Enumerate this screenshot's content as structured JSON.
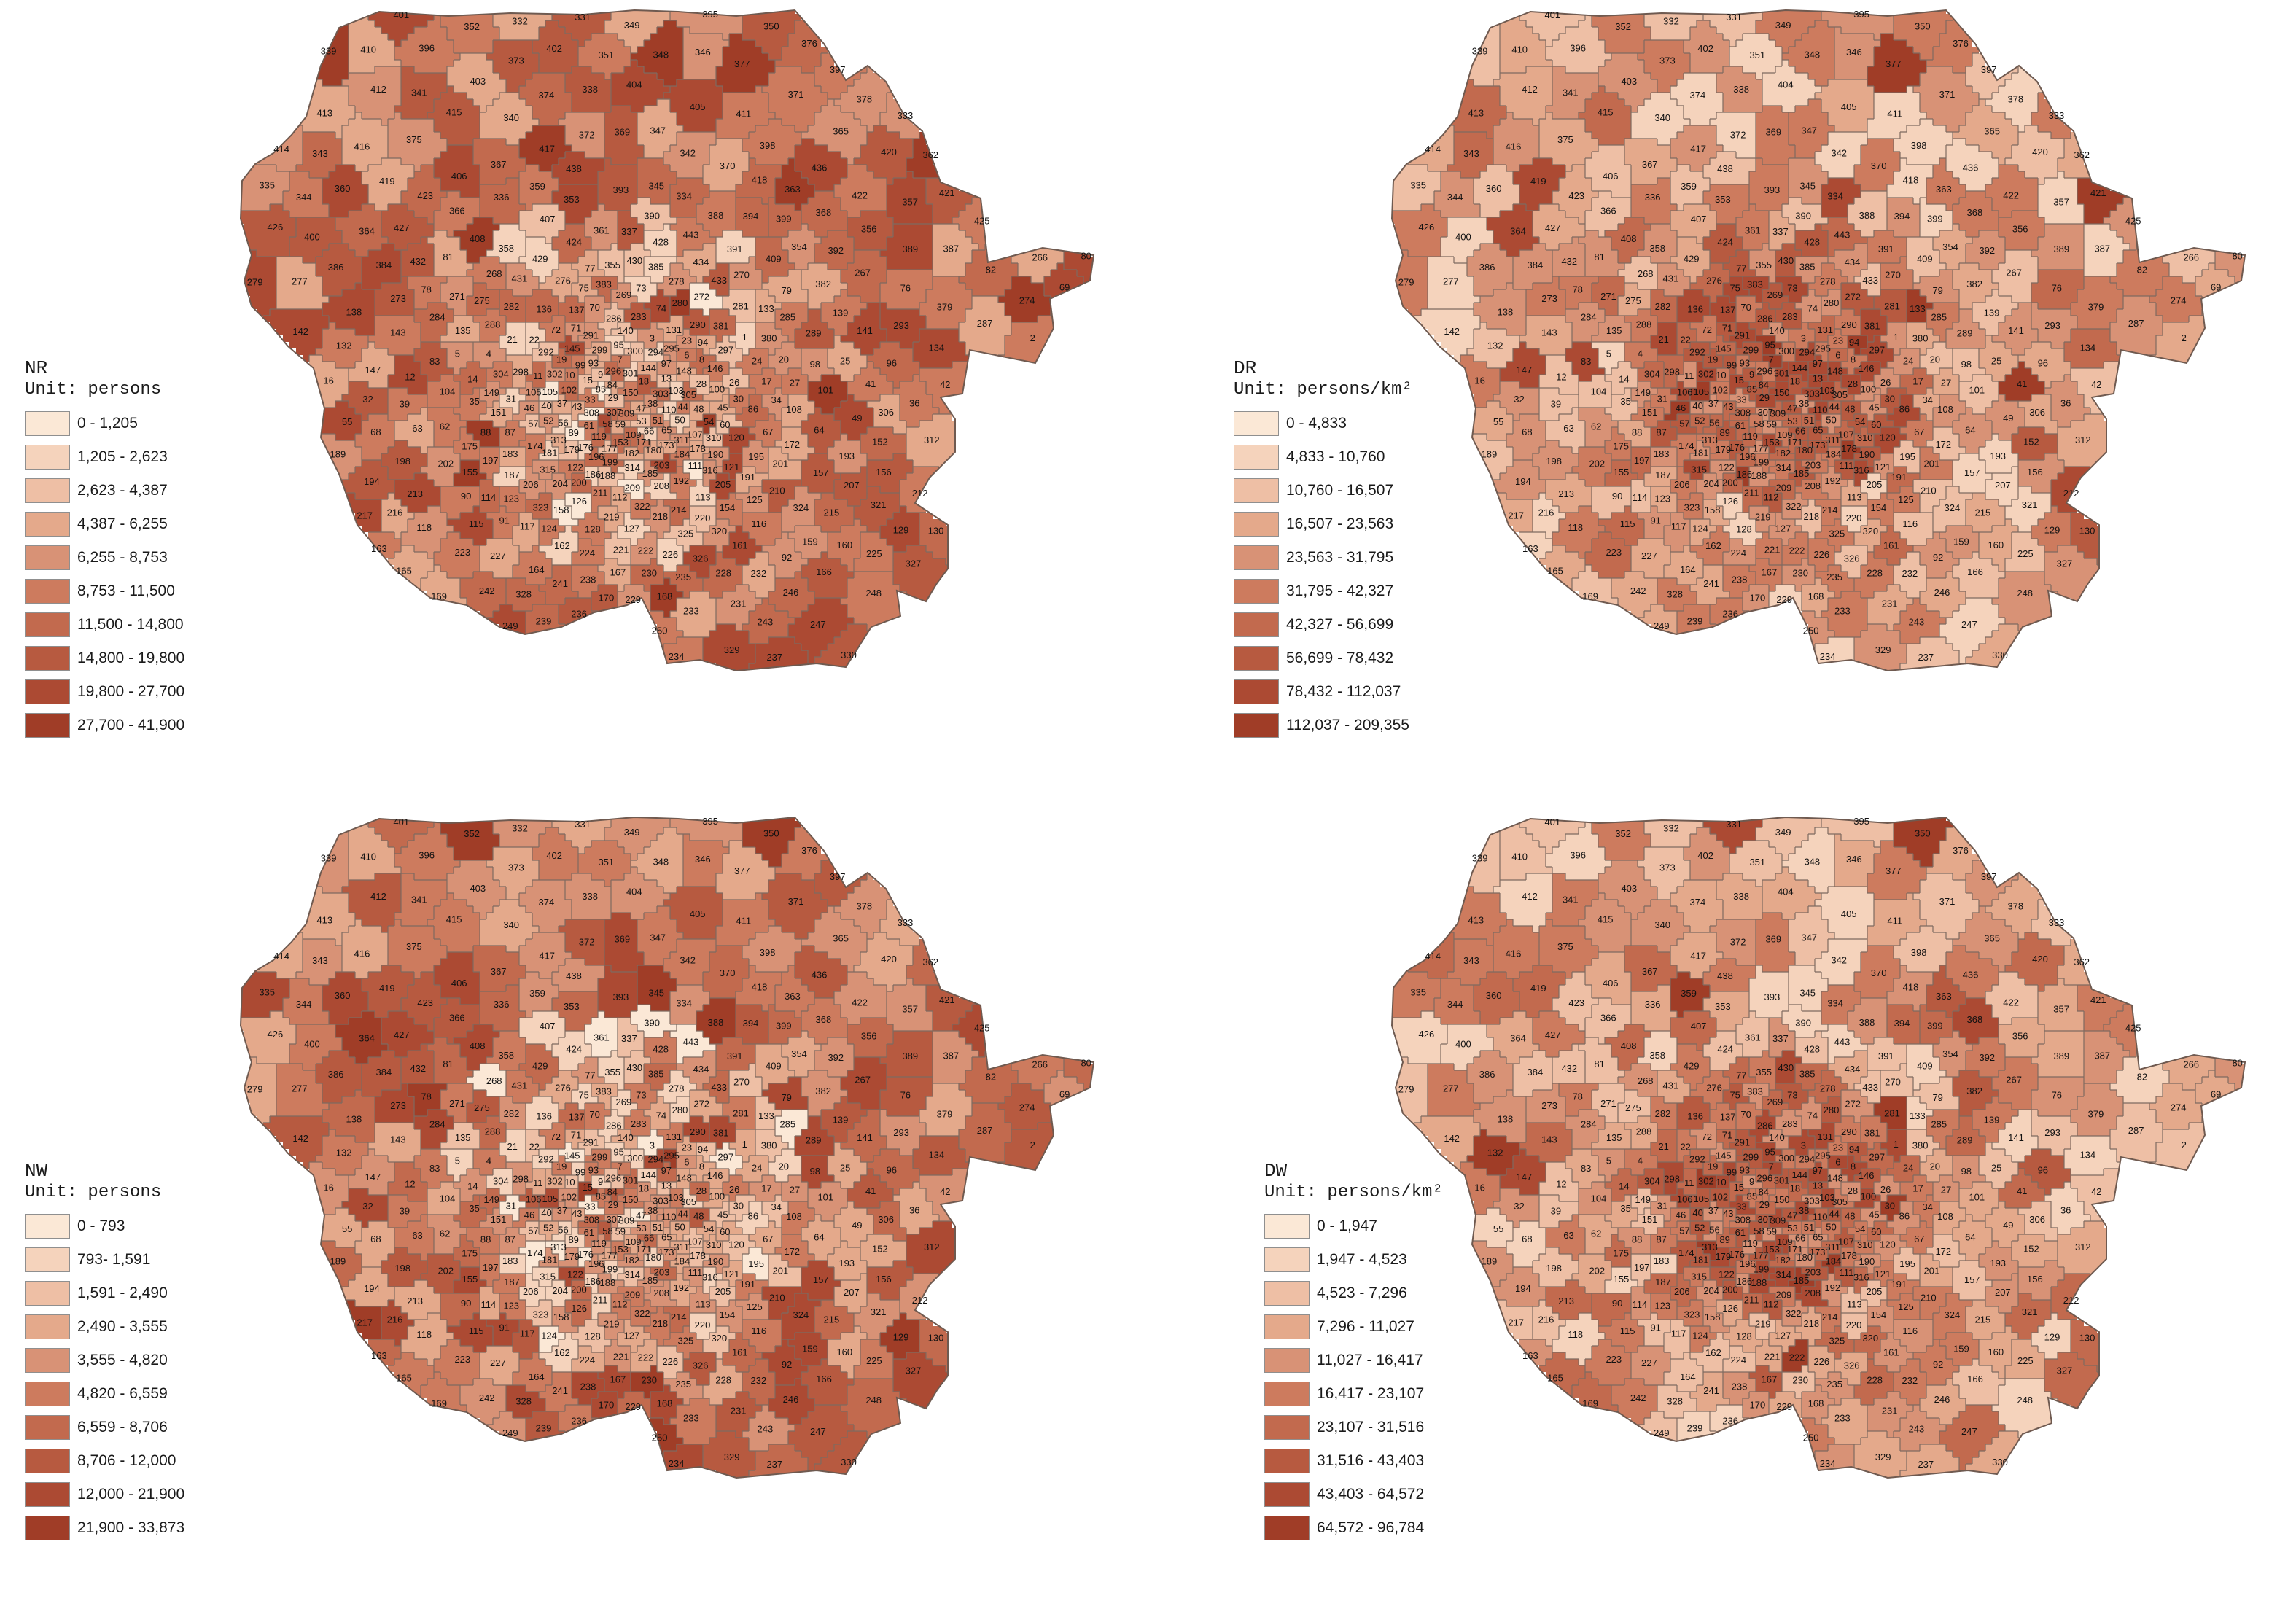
{
  "palette": [
    "#fbe8d6",
    "#f5d3bc",
    "#eebfa5",
    "#e4a98b",
    "#d89276",
    "#cd7b5e",
    "#c26a4e",
    "#b75a40",
    "#ac4a33",
    "#a03d27"
  ],
  "panels": [
    {
      "id": "NR",
      "legend": {
        "title": "NR",
        "unit": "Unit: persons",
        "classes": [
          "0 - 1,205",
          "1,205 - 2,623",
          "2,623 - 4,387",
          "4,387 - 6,255",
          "6,255 - 8,753",
          "8,753 - 11,500",
          "11,500 - 14,800",
          "14,800 - 19,800",
          "19,800 - 27,700",
          "27,700 - 41,900"
        ]
      },
      "seed": 11
    },
    {
      "id": "DR",
      "legend": {
        "title": "DR",
        "unit": "Unit: persons/km²",
        "classes": [
          "0 - 4,833",
          "4,833 - 10,760",
          "10,760 - 16,507",
          "16,507 - 23,563",
          "23,563 - 31,795",
          "31,795 - 42,327",
          "42,327 - 56,699",
          "56,699 - 78,432",
          "78,432 - 112,037",
          "112,037 - 209,355"
        ]
      },
      "seed": 23
    },
    {
      "id": "NW",
      "legend": {
        "title": "NW",
        "unit": "Unit: persons",
        "classes": [
          "0 - 793",
          "793- 1,591",
          "1,591 - 2,490",
          "2,490 - 3,555",
          "3,555 - 4,820",
          "4,820 - 6,559",
          "6,559 - 8,706",
          "8,706 - 12,000",
          "12,000 - 21,900",
          "21,900 - 33,873"
        ]
      },
      "seed": 37
    },
    {
      "id": "DW",
      "legend": {
        "title": "DW",
        "unit": "Unit: persons/km²",
        "classes": [
          "0 - 1,947",
          "1,947 - 4,523",
          "4,523 - 7,296",
          "7,296 - 11,027",
          "11,027 - 16,417",
          "16,417 - 23,107",
          "23,107 - 31,516",
          "31,516 - 43,403",
          "43,403 - 64,572",
          "64,572 - 96,784"
        ]
      },
      "seed": 53
    }
  ],
  "districts": [
    {
      "id": "395"
    },
    {
      "id": "401"
    },
    {
      "id": "331"
    },
    {
      "id": "332"
    },
    {
      "id": "349"
    },
    {
      "id": "350"
    },
    {
      "id": "352"
    },
    {
      "id": "376"
    },
    {
      "id": "396"
    },
    {
      "id": "402"
    },
    {
      "id": "410"
    },
    {
      "id": "339"
    },
    {
      "id": "346"
    },
    {
      "id": "348"
    },
    {
      "id": "351"
    },
    {
      "id": "373"
    },
    {
      "id": "377"
    },
    {
      "id": "397"
    },
    {
      "id": "403"
    },
    {
      "id": "404"
    },
    {
      "id": "412"
    },
    {
      "id": "338"
    },
    {
      "id": "341"
    },
    {
      "id": "371"
    },
    {
      "id": "374"
    },
    {
      "id": "378"
    },
    {
      "id": "405"
    },
    {
      "id": "415"
    },
    {
      "id": "413"
    },
    {
      "id": "411"
    },
    {
      "id": "333"
    },
    {
      "id": "340"
    },
    {
      "id": "347"
    },
    {
      "id": "365"
    },
    {
      "id": "369"
    },
    {
      "id": "372"
    },
    {
      "id": "375"
    },
    {
      "id": "398"
    },
    {
      "id": "416"
    },
    {
      "id": "417"
    },
    {
      "id": "414"
    },
    {
      "id": "420"
    },
    {
      "id": "342"
    },
    {
      "id": "343"
    },
    {
      "id": "362"
    },
    {
      "id": "367"
    },
    {
      "id": "370"
    },
    {
      "id": "436"
    },
    {
      "id": "438"
    },
    {
      "id": "406"
    },
    {
      "id": "418"
    },
    {
      "id": "419"
    },
    {
      "id": "335"
    },
    {
      "id": "345"
    },
    {
      "id": "359"
    },
    {
      "id": "360"
    },
    {
      "id": "363"
    },
    {
      "id": "393"
    },
    {
      "id": "421"
    },
    {
      "id": "422"
    },
    {
      "id": "423"
    },
    {
      "id": "334"
    },
    {
      "id": "336"
    },
    {
      "id": "344"
    },
    {
      "id": "353"
    },
    {
      "id": "357"
    },
    {
      "id": "366"
    },
    {
      "id": "368"
    },
    {
      "id": "388"
    },
    {
      "id": "390"
    },
    {
      "id": "394"
    },
    {
      "id": "399"
    },
    {
      "id": "407"
    },
    {
      "id": "425"
    },
    {
      "id": "426"
    },
    {
      "id": "427"
    },
    {
      "id": "356"
    },
    {
      "id": "361"
    },
    {
      "id": "364"
    },
    {
      "id": "337"
    },
    {
      "id": "443"
    },
    {
      "id": "400"
    },
    {
      "id": "408"
    },
    {
      "id": "424"
    },
    {
      "id": "428"
    },
    {
      "id": "354"
    },
    {
      "id": "358"
    },
    {
      "id": "387"
    },
    {
      "id": "389"
    },
    {
      "id": "391"
    },
    {
      "id": "392"
    },
    {
      "id": "80"
    },
    {
      "id": "81"
    },
    {
      "id": "266"
    },
    {
      "id": "409"
    },
    {
      "id": "429"
    },
    {
      "id": "430"
    },
    {
      "id": "432"
    },
    {
      "id": "434"
    },
    {
      "id": "355"
    },
    {
      "id": "384"
    },
    {
      "id": "385"
    },
    {
      "id": "386"
    },
    {
      "id": "77"
    },
    {
      "id": "82"
    },
    {
      "id": "267"
    },
    {
      "id": "268"
    },
    {
      "id": "270"
    },
    {
      "id": "431"
    },
    {
      "id": "433"
    },
    {
      "id": "276"
    },
    {
      "id": "277"
    },
    {
      "id": "278"
    },
    {
      "id": "279"
    },
    {
      "id": "382"
    },
    {
      "id": "383"
    },
    {
      "id": "69"
    },
    {
      "id": "73"
    },
    {
      "id": "75"
    },
    {
      "id": "76"
    },
    {
      "id": "78"
    },
    {
      "id": "79"
    },
    {
      "id": "269"
    },
    {
      "id": "271"
    },
    {
      "id": "272"
    },
    {
      "id": "273"
    },
    {
      "id": "274"
    },
    {
      "id": "275"
    },
    {
      "id": "280"
    },
    {
      "id": "281"
    },
    {
      "id": "282"
    },
    {
      "id": "379"
    },
    {
      "id": "70"
    },
    {
      "id": "74"
    },
    {
      "id": "133"
    },
    {
      "id": "136"
    },
    {
      "id": "137"
    },
    {
      "id": "138"
    },
    {
      "id": "139"
    },
    {
      "id": "283"
    },
    {
      "id": "284"
    },
    {
      "id": "285"
    },
    {
      "id": "286"
    },
    {
      "id": "287"
    },
    {
      "id": "288"
    },
    {
      "id": "290"
    },
    {
      "id": "293"
    },
    {
      "id": "381"
    },
    {
      "id": "71"
    },
    {
      "id": "72"
    },
    {
      "id": "131"
    },
    {
      "id": "135"
    },
    {
      "id": "140"
    },
    {
      "id": "141"
    },
    {
      "id": "142"
    },
    {
      "id": "143"
    },
    {
      "id": "289"
    },
    {
      "id": "291"
    },
    {
      "id": "1"
    },
    {
      "id": "2"
    },
    {
      "id": "3"
    },
    {
      "id": "380"
    },
    {
      "id": "21"
    },
    {
      "id": "22"
    },
    {
      "id": "23"
    },
    {
      "id": "94"
    },
    {
      "id": "95"
    },
    {
      "id": "132"
    },
    {
      "id": "134"
    },
    {
      "id": "145"
    },
    {
      "id": "295"
    },
    {
      "id": "297"
    },
    {
      "id": "299"
    },
    {
      "id": "300"
    },
    {
      "id": "292"
    },
    {
      "id": "294"
    },
    {
      "id": "4"
    },
    {
      "id": "5"
    },
    {
      "id": "6"
    },
    {
      "id": "7"
    },
    {
      "id": "8"
    },
    {
      "id": "19"
    },
    {
      "id": "20"
    },
    {
      "id": "24"
    },
    {
      "id": "25"
    },
    {
      "id": "83"
    },
    {
      "id": "93"
    },
    {
      "id": "96"
    },
    {
      "id": "97"
    },
    {
      "id": "98"
    },
    {
      "id": "99"
    },
    {
      "id": "144"
    },
    {
      "id": "146"
    },
    {
      "id": "147"
    },
    {
      "id": "148"
    },
    {
      "id": "296"
    },
    {
      "id": "298"
    },
    {
      "id": "301"
    },
    {
      "id": "302"
    },
    {
      "id": "304"
    },
    {
      "id": "9"
    },
    {
      "id": "10"
    },
    {
      "id": "11"
    },
    {
      "id": "12"
    },
    {
      "id": "13"
    },
    {
      "id": "14"
    },
    {
      "id": "15"
    },
    {
      "id": "16"
    },
    {
      "id": "17"
    },
    {
      "id": "18"
    },
    {
      "id": "26"
    },
    {
      "id": "27"
    },
    {
      "id": "28"
    },
    {
      "id": "41"
    },
    {
      "id": "42"
    },
    {
      "id": "84"
    },
    {
      "id": "85"
    },
    {
      "id": "100"
    },
    {
      "id": "101"
    },
    {
      "id": "102"
    },
    {
      "id": "103"
    },
    {
      "id": "104"
    },
    {
      "id": "105"
    },
    {
      "id": "106"
    },
    {
      "id": "149"
    },
    {
      "id": "150"
    },
    {
      "id": "303"
    },
    {
      "id": "305"
    },
    {
      "id": "29"
    },
    {
      "id": "30"
    },
    {
      "id": "31"
    },
    {
      "id": "32"
    },
    {
      "id": "33"
    },
    {
      "id": "34"
    },
    {
      "id": "35"
    },
    {
      "id": "36"
    },
    {
      "id": "37"
    },
    {
      "id": "38"
    },
    {
      "id": "39"
    },
    {
      "id": "40"
    },
    {
      "id": "43"
    },
    {
      "id": "44"
    },
    {
      "id": "45"
    },
    {
      "id": "46"
    },
    {
      "id": "47"
    },
    {
      "id": "48"
    },
    {
      "id": "86"
    },
    {
      "id": "108"
    },
    {
      "id": "110"
    },
    {
      "id": "151"
    },
    {
      "id": "306"
    },
    {
      "id": "307"
    },
    {
      "id": "308"
    },
    {
      "id": "309"
    },
    {
      "id": "49"
    },
    {
      "id": "50"
    },
    {
      "id": "51"
    },
    {
      "id": "52"
    },
    {
      "id": "53"
    },
    {
      "id": "54"
    },
    {
      "id": "55"
    },
    {
      "id": "56"
    },
    {
      "id": "57"
    },
    {
      "id": "58"
    },
    {
      "id": "59"
    },
    {
      "id": "60"
    },
    {
      "id": "61"
    },
    {
      "id": "62"
    },
    {
      "id": "63"
    },
    {
      "id": "64"
    },
    {
      "id": "65"
    },
    {
      "id": "66"
    },
    {
      "id": "67"
    },
    {
      "id": "68"
    },
    {
      "id": "87"
    },
    {
      "id": "88"
    },
    {
      "id": "89"
    },
    {
      "id": "107"
    },
    {
      "id": "109"
    },
    {
      "id": "119"
    },
    {
      "id": "120"
    },
    {
      "id": "310"
    },
    {
      "id": "311"
    },
    {
      "id": "312"
    },
    {
      "id": "313"
    },
    {
      "id": "152"
    },
    {
      "id": "153"
    },
    {
      "id": "171"
    },
    {
      "id": "172"
    },
    {
      "id": "173"
    },
    {
      "id": "174"
    },
    {
      "id": "175"
    },
    {
      "id": "176"
    },
    {
      "id": "177"
    },
    {
      "id": "178"
    },
    {
      "id": "179"
    },
    {
      "id": "180"
    },
    {
      "id": "181"
    },
    {
      "id": "182"
    },
    {
      "id": "183"
    },
    {
      "id": "184"
    },
    {
      "id": "189"
    },
    {
      "id": "190"
    },
    {
      "id": "193"
    },
    {
      "id": "195"
    },
    {
      "id": "196"
    },
    {
      "id": "197"
    },
    {
      "id": "198"
    },
    {
      "id": "199"
    },
    {
      "id": "201"
    },
    {
      "id": "202"
    },
    {
      "id": "203"
    },
    {
      "id": "111"
    },
    {
      "id": "121"
    },
    {
      "id": "122"
    },
    {
      "id": "314"
    },
    {
      "id": "315"
    },
    {
      "id": "316"
    },
    {
      "id": "155"
    },
    {
      "id": "156"
    },
    {
      "id": "157"
    },
    {
      "id": "185"
    },
    {
      "id": "186"
    },
    {
      "id": "187"
    },
    {
      "id": "188"
    },
    {
      "id": "191"
    },
    {
      "id": "192"
    },
    {
      "id": "194"
    },
    {
      "id": "200"
    },
    {
      "id": "204"
    },
    {
      "id": "205"
    },
    {
      "id": "206"
    },
    {
      "id": "207"
    },
    {
      "id": "208"
    },
    {
      "id": "209"
    },
    {
      "id": "210"
    },
    {
      "id": "211"
    },
    {
      "id": "212"
    },
    {
      "id": "213"
    },
    {
      "id": "90"
    },
    {
      "id": "112"
    },
    {
      "id": "113"
    },
    {
      "id": "114"
    },
    {
      "id": "123"
    },
    {
      "id": "125"
    },
    {
      "id": "126"
    },
    {
      "id": "321"
    },
    {
      "id": "322"
    },
    {
      "id": "323"
    },
    {
      "id": "324"
    },
    {
      "id": "154"
    },
    {
      "id": "158"
    },
    {
      "id": "214"
    },
    {
      "id": "215"
    },
    {
      "id": "216"
    },
    {
      "id": "217"
    },
    {
      "id": "218"
    },
    {
      "id": "219"
    },
    {
      "id": "220"
    },
    {
      "id": "91"
    },
    {
      "id": "115"
    },
    {
      "id": "116"
    },
    {
      "id": "117"
    },
    {
      "id": "118"
    },
    {
      "id": "124"
    },
    {
      "id": "127"
    },
    {
      "id": "128"
    },
    {
      "id": "129"
    },
    {
      "id": "130"
    },
    {
      "id": "320"
    },
    {
      "id": "325"
    },
    {
      "id": "159"
    },
    {
      "id": "160"
    },
    {
      "id": "161"
    },
    {
      "id": "162"
    },
    {
      "id": "163"
    },
    {
      "id": "221"
    },
    {
      "id": "222"
    },
    {
      "id": "223"
    },
    {
      "id": "224"
    },
    {
      "id": "225"
    },
    {
      "id": "226"
    },
    {
      "id": "227"
    },
    {
      "id": "92"
    },
    {
      "id": "326"
    },
    {
      "id": "327"
    },
    {
      "id": "164"
    },
    {
      "id": "165"
    },
    {
      "id": "166"
    },
    {
      "id": "167"
    },
    {
      "id": "228"
    },
    {
      "id": "230"
    },
    {
      "id": "232"
    },
    {
      "id": "235"
    },
    {
      "id": "238"
    },
    {
      "id": "241"
    },
    {
      "id": "242"
    },
    {
      "id": "246"
    },
    {
      "id": "248"
    },
    {
      "id": "328"
    },
    {
      "id": "168"
    },
    {
      "id": "169"
    },
    {
      "id": "170"
    },
    {
      "id": "229"
    },
    {
      "id": "231"
    },
    {
      "id": "233"
    },
    {
      "id": "236"
    },
    {
      "id": "239"
    },
    {
      "id": "243"
    },
    {
      "id": "247"
    },
    {
      "id": "249"
    },
    {
      "id": "250"
    },
    {
      "id": "329"
    },
    {
      "id": "330"
    },
    {
      "id": "234"
    },
    {
      "id": "237"
    },
    {
      "id": "240"
    },
    {
      "id": "244"
    },
    {
      "id": "245"
    },
    {
      "id": "251"
    },
    {
      "id": "252"
    },
    {
      "id": "253"
    },
    {
      "id": "254"
    },
    {
      "id": "255"
    },
    {
      "id": "256"
    },
    {
      "id": "257"
    },
    {
      "id": "258"
    },
    {
      "id": "259"
    },
    {
      "id": "260"
    },
    {
      "id": "261"
    },
    {
      "id": "262"
    },
    {
      "id": "263"
    },
    {
      "id": "264"
    },
    {
      "id": "265"
    }
  ]
}
